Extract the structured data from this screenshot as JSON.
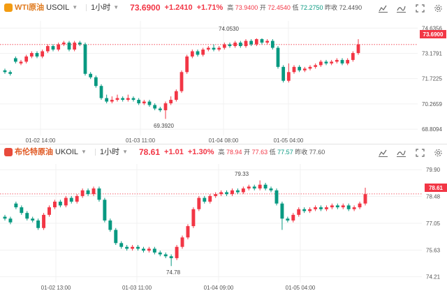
{
  "colors": {
    "up": "#f23645",
    "down": "#089981",
    "grid": "#f1f1f1",
    "axis_text": "#555555",
    "top_icon": "#f39c12",
    "bottom_icon": "#e84a3b",
    "brent_name": "#e0561f",
    "wti_name": "#e07b1f"
  },
  "toolbar_icons": [
    "chart-type-icon",
    "indicators-icon",
    "fullscreen-icon",
    "settings-icon"
  ],
  "top": {
    "symbol_name": "WTI原油",
    "symbol_code": "USOIL",
    "interval": "1小时",
    "price": "73.6900",
    "change": "+1.2410",
    "change_pct": "+1.71%",
    "ohlc": [
      {
        "k": "高",
        "v": "73.9400"
      },
      {
        "k": "开",
        "v": "72.4540"
      },
      {
        "k": "低",
        "v": "72.2750"
      },
      {
        "k": "昨收",
        "v": "72.4490"
      }
    ],
    "price_badge": "73.6900",
    "hi_label": "74.0530",
    "lo_label": "69.3920"
  },
  "bottom": {
    "symbol_name": "布伦特原油",
    "symbol_code": "UKOIL",
    "interval": "1小时",
    "price": "78.61",
    "change": "+1.01",
    "change_pct": "+1.30%",
    "ohlc": [
      {
        "k": "高",
        "v": "78.94"
      },
      {
        "k": "开",
        "v": "77.63"
      },
      {
        "k": "低",
        "v": "77.57"
      },
      {
        "k": "昨收",
        "v": "77.60"
      }
    ],
    "price_badge": "78.61",
    "hi_label": "79.33",
    "lo_label": "74.78"
  },
  "chart_data": [
    {
      "type": "candlestick",
      "title": "WTI原油 USOIL 1小时",
      "y_ticks": [
        "74.6356",
        "73.1791",
        "71.7225",
        "70.2659",
        "68.8094"
      ],
      "x_ticks": [
        "01-02 14:00",
        "01-03 11:00",
        "01-04 08:00",
        "01-05 04:00"
      ],
      "ylim": [
        68.45,
        75.05
      ],
      "last_price": 73.69,
      "annotations": [
        {
          "text": "74.0530",
          "value": 74.053
        },
        {
          "text": "69.3920",
          "value": 69.392
        }
      ],
      "candles": [
        [
          72.2,
          72.1,
          72.3,
          72.0
        ],
        [
          72.1,
          72.0,
          72.2,
          71.9
        ],
        [
          72.9,
          72.7,
          73.0,
          72.6
        ],
        [
          72.6,
          72.7,
          72.8,
          72.5
        ],
        [
          72.7,
          73.0,
          73.1,
          72.6
        ],
        [
          73.0,
          73.2,
          73.3,
          72.9
        ],
        [
          73.2,
          73.0,
          73.3,
          72.9
        ],
        [
          73.0,
          73.3,
          73.4,
          72.9
        ],
        [
          73.3,
          73.6,
          73.7,
          73.2
        ],
        [
          73.6,
          73.4,
          73.7,
          73.3
        ],
        [
          73.4,
          73.7,
          73.8,
          73.3
        ],
        [
          73.7,
          73.8,
          73.9,
          73.6
        ],
        [
          73.8,
          73.4,
          73.9,
          73.3
        ],
        [
          73.4,
          73.8,
          73.9,
          73.3
        ],
        [
          73.8,
          73.7,
          73.9,
          73.6
        ],
        [
          73.7,
          72.0,
          73.8,
          71.9
        ],
        [
          72.0,
          71.8,
          72.1,
          71.7
        ],
        [
          71.8,
          71.3,
          71.9,
          71.2
        ],
        [
          71.3,
          70.6,
          71.4,
          70.5
        ],
        [
          70.6,
          70.4,
          70.8,
          70.3
        ],
        [
          70.4,
          70.5,
          70.7,
          70.3
        ],
        [
          70.5,
          70.6,
          70.8,
          70.4
        ],
        [
          70.6,
          70.5,
          70.7,
          70.4
        ],
        [
          70.5,
          70.6,
          70.8,
          70.4
        ],
        [
          70.6,
          70.5,
          70.7,
          70.4
        ],
        [
          70.5,
          70.3,
          70.6,
          70.2
        ],
        [
          70.3,
          70.4,
          70.5,
          70.2
        ],
        [
          70.4,
          70.2,
          70.5,
          70.1
        ],
        [
          70.2,
          70.0,
          70.3,
          69.9
        ],
        [
          70.0,
          69.9,
          70.1,
          69.8
        ],
        [
          69.9,
          70.3,
          70.4,
          69.4
        ],
        [
          70.3,
          70.5,
          70.7,
          70.2
        ],
        [
          70.5,
          71.0,
          71.1,
          70.4
        ],
        [
          71.0,
          72.1,
          72.2,
          70.9
        ],
        [
          72.1,
          73.0,
          73.1,
          72.0
        ],
        [
          73.0,
          73.3,
          73.4,
          72.9
        ],
        [
          73.3,
          73.1,
          73.4,
          73.0
        ],
        [
          73.1,
          73.4,
          73.5,
          73.0
        ],
        [
          73.4,
          73.5,
          73.6,
          73.3
        ],
        [
          73.5,
          73.4,
          73.7,
          73.3
        ],
        [
          73.4,
          73.5,
          73.6,
          73.3
        ],
        [
          73.5,
          73.7,
          73.8,
          73.4
        ],
        [
          73.7,
          73.6,
          73.8,
          73.5
        ],
        [
          73.6,
          73.8,
          73.9,
          73.5
        ],
        [
          73.8,
          73.6,
          73.9,
          73.5
        ],
        [
          73.6,
          73.9,
          74.0,
          73.5
        ],
        [
          73.9,
          73.7,
          74.0,
          73.6
        ],
        [
          73.7,
          74.0,
          74.05,
          73.6
        ],
        [
          74.0,
          73.8,
          74.05,
          73.7
        ],
        [
          73.8,
          73.9,
          74.0,
          73.7
        ],
        [
          73.9,
          73.5,
          74.0,
          73.4
        ],
        [
          73.5,
          72.4,
          73.6,
          72.3
        ],
        [
          72.4,
          71.6,
          72.5,
          71.5
        ],
        [
          71.6,
          72.1,
          72.6,
          71.5
        ],
        [
          72.1,
          72.4,
          72.5,
          72.0
        ],
        [
          72.4,
          72.2,
          72.5,
          72.1
        ],
        [
          72.2,
          72.3,
          72.4,
          72.1
        ],
        [
          72.3,
          72.4,
          72.5,
          72.2
        ],
        [
          72.4,
          72.5,
          72.6,
          72.3
        ],
        [
          72.5,
          72.7,
          72.8,
          72.4
        ],
        [
          72.7,
          72.6,
          72.8,
          72.5
        ],
        [
          72.6,
          72.7,
          72.8,
          72.5
        ],
        [
          72.7,
          72.8,
          72.9,
          72.6
        ],
        [
          72.8,
          72.6,
          72.9,
          72.5
        ],
        [
          72.6,
          72.8,
          72.9,
          72.5
        ],
        [
          72.8,
          73.2,
          73.3,
          72.7
        ],
        [
          73.2,
          73.7,
          74.0,
          73.1
        ]
      ]
    },
    {
      "type": "candlestick",
      "title": "布伦特原油 UKOIL 1小时",
      "y_ticks": [
        "79.90",
        "78.48",
        "77.05",
        "75.63",
        "74.21"
      ],
      "x_ticks": [
        "01-02 13:00",
        "01-03 11:00",
        "01-04 09:00",
        "01-05 04:00"
      ],
      "ylim": [
        73.9,
        80.2
      ],
      "last_price": 78.61,
      "annotations": [
        {
          "text": "79.33",
          "value": 79.33
        },
        {
          "text": "74.78",
          "value": 74.78
        }
      ],
      "candles": [
        [
          77.4,
          77.3,
          77.5,
          77.2
        ],
        [
          77.3,
          77.1,
          77.4,
          77.0
        ],
        [
          78.1,
          77.9,
          78.2,
          77.8
        ],
        [
          77.9,
          77.6,
          78.0,
          77.5
        ],
        [
          77.6,
          77.3,
          77.7,
          77.2
        ],
        [
          77.3,
          77.2,
          77.4,
          77.1
        ],
        [
          77.2,
          76.8,
          77.3,
          76.7
        ],
        [
          76.8,
          77.5,
          77.6,
          76.7
        ],
        [
          77.5,
          77.9,
          78.0,
          77.4
        ],
        [
          77.9,
          78.2,
          78.3,
          77.8
        ],
        [
          78.2,
          78.0,
          78.3,
          77.9
        ],
        [
          78.0,
          78.4,
          78.5,
          77.9
        ],
        [
          78.4,
          78.2,
          78.5,
          78.1
        ],
        [
          78.2,
          78.5,
          78.6,
          78.1
        ],
        [
          78.5,
          78.8,
          78.9,
          78.4
        ],
        [
          78.8,
          78.6,
          78.9,
          78.5
        ],
        [
          78.6,
          78.9,
          79.0,
          78.5
        ],
        [
          78.9,
          78.3,
          79.0,
          78.2
        ],
        [
          78.3,
          77.2,
          78.4,
          77.1
        ],
        [
          77.2,
          76.7,
          77.3,
          76.6
        ],
        [
          76.7,
          76.0,
          76.8,
          75.9
        ],
        [
          76.0,
          75.8,
          76.1,
          75.7
        ],
        [
          75.8,
          75.7,
          75.9,
          75.6
        ],
        [
          75.7,
          75.8,
          75.9,
          75.6
        ],
        [
          75.8,
          75.7,
          75.9,
          75.6
        ],
        [
          75.7,
          75.6,
          75.8,
          75.5
        ],
        [
          75.6,
          75.7,
          75.8,
          75.5
        ],
        [
          75.7,
          75.5,
          75.8,
          75.4
        ],
        [
          75.5,
          75.4,
          75.6,
          75.3
        ],
        [
          75.4,
          75.3,
          75.5,
          75.2
        ],
        [
          75.3,
          75.2,
          75.4,
          74.78
        ],
        [
          75.2,
          75.8,
          75.9,
          75.1
        ],
        [
          75.8,
          76.3,
          76.4,
          75.7
        ],
        [
          76.3,
          76.9,
          77.0,
          76.2
        ],
        [
          76.9,
          77.8,
          77.9,
          76.8
        ],
        [
          77.8,
          78.4,
          78.5,
          77.7
        ],
        [
          78.4,
          78.2,
          78.5,
          78.1
        ],
        [
          78.2,
          78.5,
          78.6,
          78.1
        ],
        [
          78.5,
          78.6,
          78.7,
          78.4
        ],
        [
          78.6,
          78.7,
          78.8,
          78.5
        ],
        [
          78.7,
          78.6,
          78.8,
          78.5
        ],
        [
          78.6,
          78.8,
          78.9,
          78.5
        ],
        [
          78.8,
          78.7,
          78.9,
          78.6
        ],
        [
          78.7,
          78.9,
          79.0,
          78.6
        ],
        [
          78.9,
          79.0,
          79.1,
          78.8
        ],
        [
          79.0,
          78.9,
          79.1,
          78.8
        ],
        [
          78.9,
          79.1,
          79.33,
          78.8
        ],
        [
          79.1,
          78.9,
          79.2,
          78.8
        ],
        [
          78.9,
          78.8,
          79.0,
          78.7
        ],
        [
          78.8,
          78.1,
          78.9,
          78.0
        ],
        [
          78.1,
          77.3,
          78.2,
          76.7
        ],
        [
          77.3,
          77.2,
          77.4,
          77.1
        ],
        [
          77.2,
          77.5,
          77.6,
          77.1
        ],
        [
          77.5,
          77.8,
          77.9,
          77.4
        ],
        [
          77.8,
          77.7,
          77.9,
          77.6
        ],
        [
          77.7,
          77.8,
          77.9,
          77.6
        ],
        [
          77.8,
          77.9,
          78.0,
          77.7
        ],
        [
          77.9,
          77.8,
          78.0,
          77.7
        ],
        [
          77.8,
          77.9,
          78.0,
          77.7
        ],
        [
          77.9,
          78.0,
          78.1,
          77.8
        ],
        [
          78.0,
          77.9,
          78.1,
          77.8
        ],
        [
          77.9,
          78.0,
          78.1,
          77.8
        ],
        [
          78.0,
          77.8,
          78.1,
          77.7
        ],
        [
          77.8,
          77.9,
          78.0,
          77.7
        ],
        [
          77.9,
          78.1,
          78.2,
          77.8
        ],
        [
          78.1,
          78.6,
          78.94,
          78.0
        ]
      ]
    }
  ]
}
